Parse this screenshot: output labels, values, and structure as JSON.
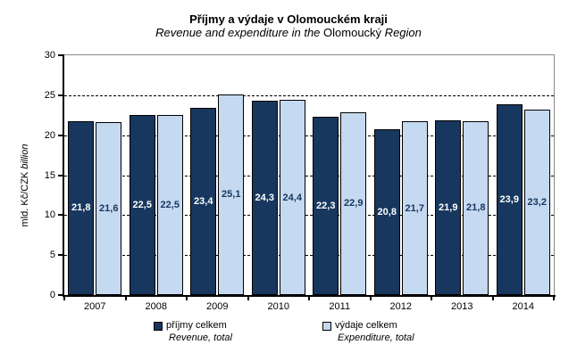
{
  "chart_data": {
    "type": "bar",
    "title": "Příjmy a výdaje v Olomouckém kraji",
    "subtitle_parts": {
      "italic_lead": "Revenue and expenditure in the ",
      "regular_name": "Olomoucký",
      "italic_tail": " Region"
    },
    "ylabel_parts": {
      "regular": "mld. Kč/CZK ",
      "italic": "billion"
    },
    "ylim": [
      0,
      30
    ],
    "ytick_interval": 5,
    "yticks": [
      0,
      5,
      10,
      15,
      20,
      25,
      30
    ],
    "gridline_values": [
      5,
      10,
      15,
      20,
      25
    ],
    "grid_style": "dashed-horizontal",
    "legend_position": "bottom",
    "categories": [
      "2007",
      "2008",
      "2009",
      "2010",
      "2011",
      "2012",
      "2013",
      "2014"
    ],
    "series": [
      {
        "name": "příjmy celkem",
        "name_translation": "Revenue, total",
        "color": "#17375E",
        "label_color": "#FFFFFF",
        "values": [
          21.8,
          22.5,
          23.4,
          24.3,
          22.3,
          20.8,
          21.9,
          23.9
        ],
        "value_labels": [
          "21,8",
          "22,5",
          "23,4",
          "24,3",
          "22,3",
          "20,8",
          "21,9",
          "23,9"
        ]
      },
      {
        "name": "výdaje celkem",
        "name_translation": "Expenditure, total",
        "color": "#C5D9F1",
        "label_color": "#17375E",
        "values": [
          21.6,
          22.5,
          25.1,
          24.4,
          22.9,
          21.7,
          21.8,
          23.2
        ],
        "value_labels": [
          "21,6",
          "22,5",
          "25,1",
          "24,4",
          "22,9",
          "21,7",
          "21,8",
          "23,2"
        ]
      }
    ],
    "colors": {
      "axis": "#000000",
      "plot_border": "#8A8A8A",
      "gridline": "#000000",
      "background": "#FFFFFF"
    }
  }
}
